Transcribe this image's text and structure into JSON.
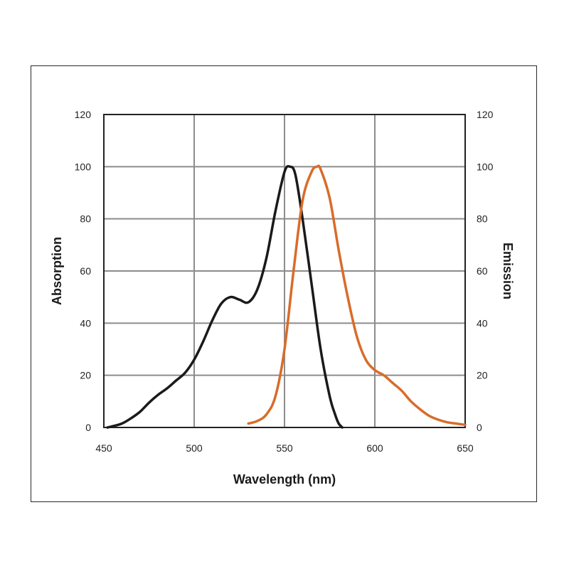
{
  "chart_data": {
    "type": "line",
    "title": "",
    "xlabel": "Wavelength (nm)",
    "ylabel": "Absorption",
    "y2label": "Emission",
    "xlim": [
      450,
      650
    ],
    "ylim": [
      0,
      120
    ],
    "y2lim": [
      0,
      120
    ],
    "x_ticks": [
      450,
      500,
      550,
      600,
      650
    ],
    "y_ticks": [
      0,
      20,
      40,
      60,
      80,
      100,
      120
    ],
    "y2_ticks": [
      0,
      20,
      40,
      60,
      80,
      100,
      120
    ],
    "grid": true,
    "legend": "none",
    "series": [
      {
        "axis": "left",
        "color": "#1a1a1a",
        "points": [
          [
            452,
            0
          ],
          [
            455,
            0.5
          ],
          [
            460,
            1.5
          ],
          [
            465,
            3.5
          ],
          [
            470,
            6
          ],
          [
            475,
            9.5
          ],
          [
            480,
            12.5
          ],
          [
            485,
            15
          ],
          [
            490,
            18
          ],
          [
            495,
            21
          ],
          [
            500,
            26
          ],
          [
            505,
            33
          ],
          [
            510,
            41
          ],
          [
            515,
            47.5
          ],
          [
            520,
            50
          ],
          [
            525,
            49
          ],
          [
            530,
            48
          ],
          [
            535,
            53
          ],
          [
            540,
            65
          ],
          [
            545,
            83
          ],
          [
            550,
            98
          ],
          [
            553,
            100
          ],
          [
            556,
            97
          ],
          [
            560,
            80
          ],
          [
            565,
            55
          ],
          [
            570,
            30
          ],
          [
            575,
            12
          ],
          [
            578,
            5
          ],
          [
            580,
            1.5
          ],
          [
            582,
            0
          ]
        ]
      },
      {
        "axis": "right",
        "color": "#d86c2a",
        "points": [
          [
            530,
            1.5
          ],
          [
            535,
            2.5
          ],
          [
            540,
            5
          ],
          [
            545,
            12
          ],
          [
            550,
            30
          ],
          [
            555,
            60
          ],
          [
            560,
            87
          ],
          [
            565,
            98
          ],
          [
            568,
            100
          ],
          [
            570,
            99
          ],
          [
            575,
            88
          ],
          [
            580,
            68
          ],
          [
            585,
            50
          ],
          [
            590,
            35
          ],
          [
            595,
            26
          ],
          [
            600,
            22
          ],
          [
            605,
            20
          ],
          [
            610,
            17
          ],
          [
            615,
            14
          ],
          [
            620,
            10
          ],
          [
            625,
            7
          ],
          [
            630,
            4.5
          ],
          [
            635,
            3
          ],
          [
            640,
            2
          ],
          [
            645,
            1.5
          ],
          [
            650,
            1
          ]
        ]
      }
    ]
  }
}
